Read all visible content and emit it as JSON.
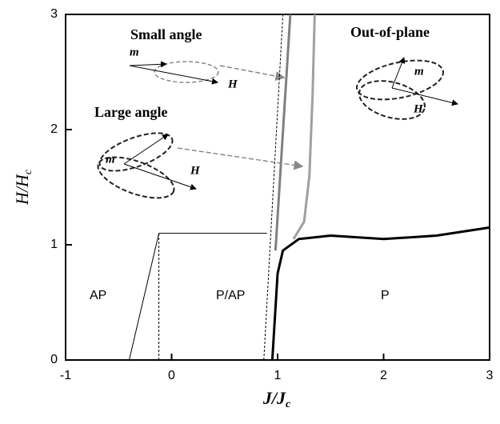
{
  "chart_data": {
    "type": "line",
    "x_label": {
      "main": "J/J",
      "sub": "c"
    },
    "y_label": {
      "main": "H/H",
      "sub": "c"
    },
    "xlim": [
      -1,
      3
    ],
    "ylim": [
      0,
      3
    ],
    "xticks": [
      -1,
      0,
      1,
      2,
      3
    ],
    "yticks": [
      0,
      1,
      2,
      3
    ],
    "annotations": [
      "AP",
      "P/AP",
      "P",
      "Small angle",
      "Large angle",
      "Out-of-plane",
      "m",
      "H",
      "m",
      "H",
      "m",
      "H"
    ],
    "series": [
      {
        "color": "#000000",
        "dash": false,
        "width": 1,
        "x": [
          -0.4,
          -0.12,
          0.9
        ],
        "y": [
          0,
          1.1,
          1.1
        ]
      },
      {
        "color": "#000000",
        "dash": true,
        "width": 1,
        "x": [
          -0.12,
          -0.12
        ],
        "y": [
          0,
          1.1
        ]
      },
      {
        "color": "#000000",
        "dash": true,
        "width": 1,
        "x": [
          0.87,
          1.05
        ],
        "y": [
          0,
          3
        ]
      },
      {
        "color": "#808080",
        "dash": false,
        "width": 3,
        "x": [
          0.98,
          1.12
        ],
        "y": [
          0.95,
          3
        ]
      },
      {
        "color": "#a0a0a0",
        "dash": false,
        "width": 3,
        "x": [
          1.15,
          1.25,
          1.3,
          1.33,
          1.35
        ],
        "y": [
          1.05,
          1.2,
          1.6,
          2.3,
          3
        ]
      },
      {
        "color": "#000000",
        "dash": false,
        "width": 3,
        "x": [
          0.95,
          1.0,
          1.05,
          1.2,
          1.5,
          2.0,
          2.5,
          3.0
        ],
        "y": [
          0,
          0.75,
          0.95,
          1.05,
          1.08,
          1.05,
          1.08,
          1.15
        ]
      }
    ]
  }
}
